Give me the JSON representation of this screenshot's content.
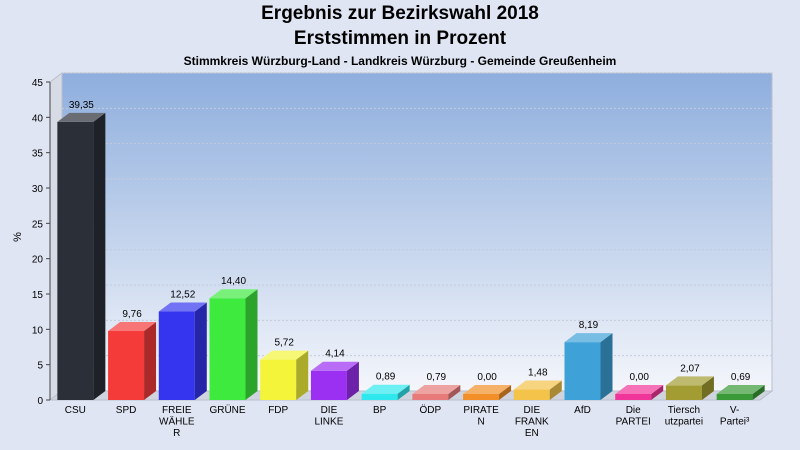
{
  "chart_data": {
    "type": "bar",
    "title": "Ergebnis zur Bezirkswahl 2018",
    "title_line2": "Erststimmen in Prozent",
    "subtitle": "Stimmkreis Würzburg-Land - Landkreis Würzburg - Gemeinde Greußenheim",
    "ylabel": "%",
    "ylim": [
      0,
      45
    ],
    "yticks": [
      "0",
      "5",
      "10",
      "15",
      "20",
      "25",
      "30",
      "35",
      "40",
      "45"
    ],
    "grid": true,
    "categories": [
      [
        "CSU"
      ],
      [
        "SPD"
      ],
      [
        "FREIE",
        "WÄHLE",
        "R"
      ],
      [
        "GRÜNE"
      ],
      [
        "FDP"
      ],
      [
        "DIE",
        "LINKE"
      ],
      [
        "BP"
      ],
      [
        "ÖDP"
      ],
      [
        "PIRATE",
        "N"
      ],
      [
        "DIE",
        "FRANK",
        "EN"
      ],
      [
        "AfD"
      ],
      [
        "Die",
        "PARTEI"
      ],
      [
        "Tiersch",
        "utzpartei"
      ],
      [
        "V-",
        "Partei³"
      ]
    ],
    "values": [
      39.35,
      9.76,
      12.52,
      14.4,
      5.72,
      4.14,
      0.89,
      0.79,
      0.0,
      1.48,
      8.19,
      0.0,
      2.07,
      0.69
    ],
    "value_labels": [
      "39,35",
      "9,76",
      "12,52",
      "14,40",
      "5,72",
      "4,14",
      "0,89",
      "0,79",
      "0,00",
      "1,48",
      "8,19",
      "0,00",
      "2,07",
      "0,69"
    ],
    "colors": [
      "#2b2f38",
      "#f53a3a",
      "#3535f0",
      "#3fea3f",
      "#f4f43b",
      "#9b2ff2",
      "#2ee8ee",
      "#e77b7b",
      "#f28f28",
      "#f3c34a",
      "#3ea1d8",
      "#f0359a",
      "#a29c32",
      "#3a9a37"
    ]
  }
}
